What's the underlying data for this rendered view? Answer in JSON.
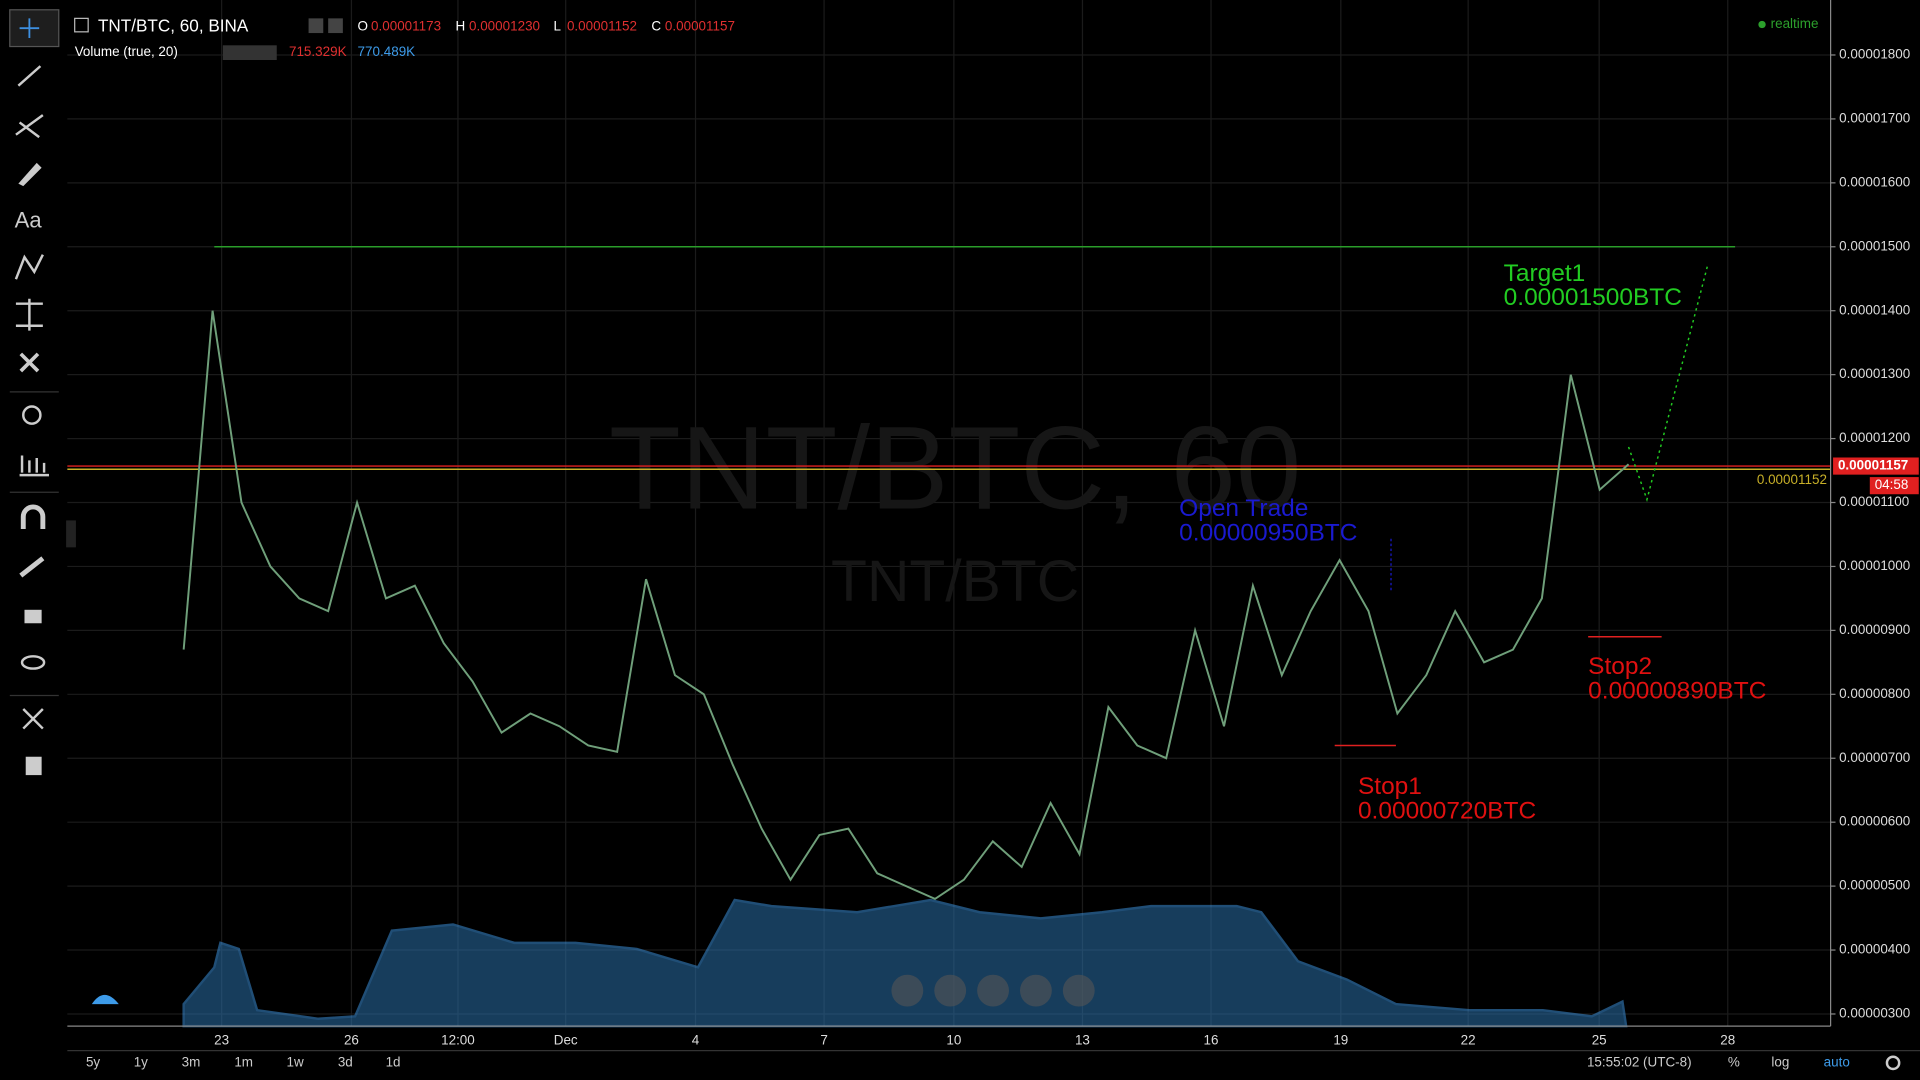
{
  "ui": {
    "symbol": "TNT/BTC, 60, BINA",
    "ohlc": [
      {
        "key": "O",
        "text": "0.00001173"
      },
      {
        "key": "H",
        "text": "0.00001230"
      },
      {
        "key": "L",
        "text": "0.00001152"
      },
      {
        "key": "C",
        "text": "0.00001157"
      }
    ],
    "volume_title": "Volume (true, 20)",
    "volume_values": [
      "715.329K",
      "770.489K"
    ],
    "realtime": "realtime",
    "toolbar_text": "Aa",
    "ranges": [
      "5y",
      "1y",
      "3m",
      "1m",
      "1w",
      "3d",
      "1d"
    ],
    "clock": "15:55:02 (UTC-8)",
    "toggles": [
      "%",
      "log",
      "auto"
    ]
  },
  "chart_data": {
    "type": "line",
    "watermark": "TNT/BTC, 60",
    "watermark_sub": "TNT/BTC",
    "xtick_labels": [
      "23",
      "26",
      "12:00",
      "Dec",
      "4",
      "7",
      "10",
      "13",
      "16",
      "19",
      "22",
      "25",
      "28"
    ],
    "series": [
      {
        "color": "#6f9f7a",
        "values": [
          8.7e-06,
          1.4e-05,
          1.1e-05,
          1e-05,
          9.5e-06,
          9.3e-06,
          1.1e-05,
          9.5e-06,
          9.7e-06,
          8.8e-06,
          8.2e-06,
          7.4e-06,
          7.7e-06,
          7.5e-06,
          7.2e-06,
          7.1e-06,
          9.8e-06,
          8.3e-06,
          8e-06,
          6.9e-06,
          5.9e-06,
          5.1e-06,
          5.8e-06,
          5.9e-06,
          5.2e-06,
          5e-06,
          4.8e-06,
          5.1e-06,
          5.7e-06,
          5.3e-06,
          6.3e-06,
          5.5e-06,
          7.8e-06,
          7.2e-06,
          7e-06,
          9e-06,
          7.5e-06,
          9.7e-06,
          8.3e-06,
          9.3e-06,
          1.01e-05,
          9.3e-06,
          7.7e-06,
          8.3e-06,
          9.3e-06,
          8.5e-06,
          8.7e-06,
          9.5e-06,
          1.3e-05,
          1.12e-05,
          1.16e-05
        ]
      }
    ],
    "ylim": [
      2.81e-06,
      1.886e-05
    ],
    "yticks": [
      {
        "value": 1.8e-05,
        "label": "0.00001800"
      },
      {
        "value": 1.7e-05,
        "label": "0.00001700"
      },
      {
        "value": 1.6e-05,
        "label": "0.00001600"
      },
      {
        "value": 1.5e-05,
        "label": "0.00001500"
      },
      {
        "value": 1.4e-05,
        "label": "0.00001400"
      },
      {
        "value": 1.3e-05,
        "label": "0.00001300"
      },
      {
        "value": 1.2e-05,
        "label": "0.00001200"
      },
      {
        "value": 1.1e-05,
        "label": "0.00001100"
      },
      {
        "value": 1e-05,
        "label": "0.00001000"
      },
      {
        "value": 9e-06,
        "label": "0.00000900"
      },
      {
        "value": 8e-06,
        "label": "0.00000800"
      },
      {
        "value": 7e-06,
        "label": "0.00000700"
      },
      {
        "value": 6e-06,
        "label": "0.00000600"
      },
      {
        "value": 5e-06,
        "label": "0.00000500"
      },
      {
        "value": 4e-06,
        "label": "0.00000400"
      },
      {
        "value": 3e-06,
        "label": "0.00000300"
      }
    ],
    "grid": true,
    "levels": [
      {
        "value": 1.5e-05,
        "color": "#2a9d2a"
      },
      {
        "value": 1.157e-05,
        "color": "#e02020",
        "label": "0.00001157"
      },
      {
        "value": 1.152e-05,
        "color": "#c8b028",
        "label": "0.00001152"
      },
      {
        "value": 7.2e-06,
        "color": "#e02020"
      },
      {
        "value": 8.9e-06,
        "color": "#e02020"
      }
    ],
    "countdown": "04:58",
    "annotations": [
      {
        "lines": [
          "Target1",
          "0.00001500BTC"
        ],
        "color": "#22cc22"
      },
      {
        "lines": [
          "Open Trade",
          "0.00000950BTC"
        ],
        "color": "#1a1ad0"
      },
      {
        "lines": [
          "Stop1",
          "0.00000720BTC"
        ],
        "color": "#e01010"
      },
      {
        "lines": [
          "Stop2",
          "0.00000890BTC"
        ],
        "color": "#e01010"
      }
    ]
  }
}
